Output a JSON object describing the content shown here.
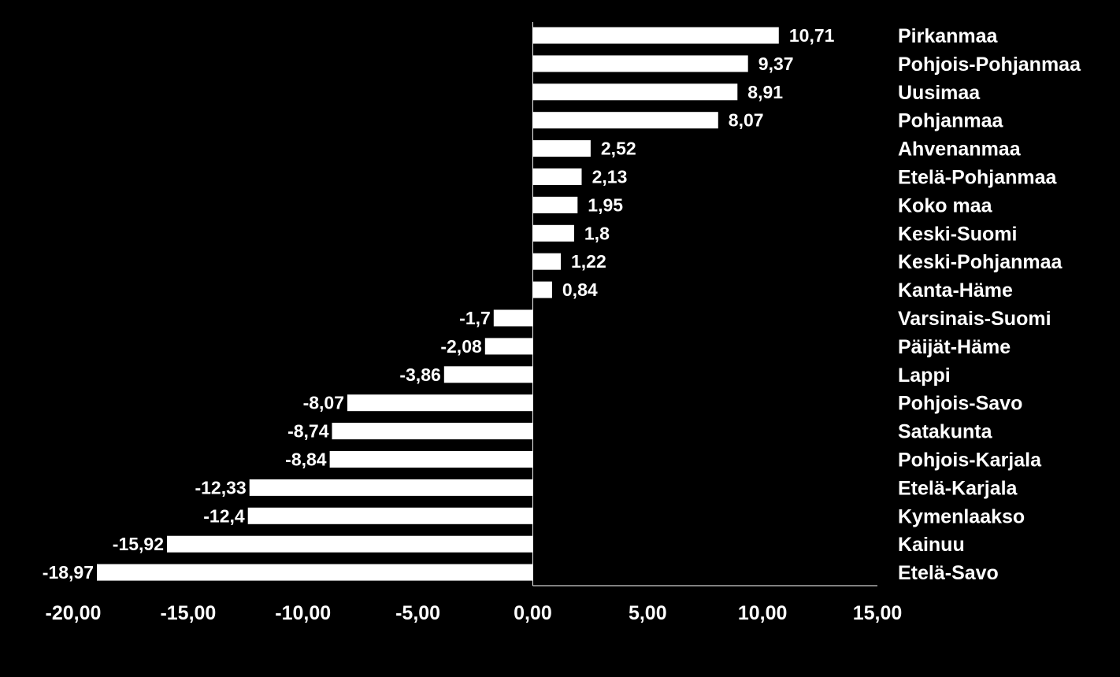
{
  "chart_data": {
    "type": "bar",
    "orientation": "horizontal",
    "title": "",
    "xlabel": "",
    "ylabel": "",
    "xlim": [
      -20,
      15
    ],
    "x_ticks": [
      -20,
      -15,
      -10,
      -5,
      0,
      5,
      10,
      15
    ],
    "x_tick_labels": [
      "-20,00",
      "-15,00",
      "-10,00",
      "-5,00",
      "0,00",
      "5,00",
      "10,00",
      "15,00"
    ],
    "grid": false,
    "legend": "none",
    "bar_color": "#ffffff",
    "background_color": "#000000",
    "text_color": "#ffffff",
    "categories": [
      "Pirkanmaa",
      "Pohjois-Pohjanmaa",
      "Uusimaa",
      "Pohjanmaa",
      "Ahvenanmaa",
      "Etelä-Pohjanmaa",
      "Koko maa",
      "Keski-Suomi",
      "Keski-Pohjanmaa",
      "Kanta-Häme",
      "Varsinais-Suomi",
      "Päijät-Häme",
      "Lappi",
      "Pohjois-Savo",
      "Satakunta",
      "Pohjois-Karjala",
      "Etelä-Karjala",
      "Kymenlaakso",
      "Kainuu",
      "Etelä-Savo"
    ],
    "values": [
      10.71,
      9.37,
      8.91,
      8.07,
      2.52,
      2.13,
      1.95,
      1.8,
      1.22,
      0.84,
      -1.7,
      -2.08,
      -3.86,
      -8.07,
      -8.74,
      -8.84,
      -12.33,
      -12.4,
      -15.92,
      -18.97
    ],
    "value_labels": [
      "10,71",
      "9,37",
      "8,91",
      "8,07",
      "2,52",
      "2,13",
      "1,95",
      "1,8",
      "1,22",
      "0,84",
      "-1,7",
      "-2,08",
      "-3,86",
      "-8,07",
      "-8,74",
      "-8,84",
      "-12,33",
      "-12,4",
      "-15,92",
      "-18,97"
    ]
  }
}
